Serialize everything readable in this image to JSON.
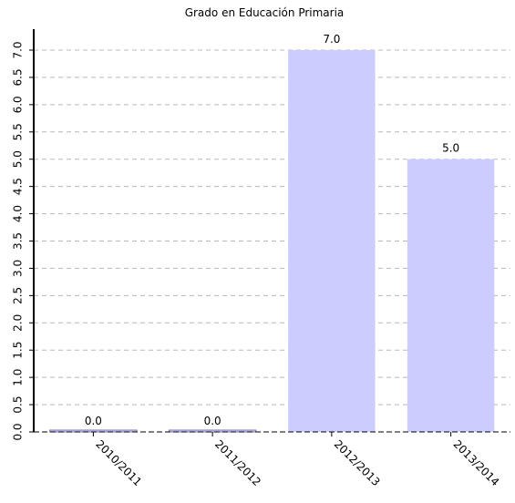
{
  "chart_data": {
    "type": "bar",
    "title": "Grado en Educación Primaria",
    "categories": [
      "2010/2011",
      "2011/2012",
      "2012/2013",
      "2013/2014"
    ],
    "values": [
      0.0,
      0.0,
      7.0,
      5.0
    ],
    "data_labels": [
      "0.0",
      "0.0",
      "7.0",
      "5.0"
    ],
    "y_ticks": [
      "0.0",
      "0.5",
      "1.0",
      "1.5",
      "2.0",
      "2.5",
      "3.0",
      "3.5",
      "4.0",
      "4.5",
      "5.0",
      "5.5",
      "6.0",
      "6.5",
      "7.0"
    ],
    "ylim": [
      0,
      7.0
    ],
    "grid": true,
    "grid_style": "dashed",
    "colors": {
      "bar": "#ccccff",
      "bar_edge": "#7777aa",
      "grid": "#b8b8b8",
      "axis": "#000000"
    }
  }
}
